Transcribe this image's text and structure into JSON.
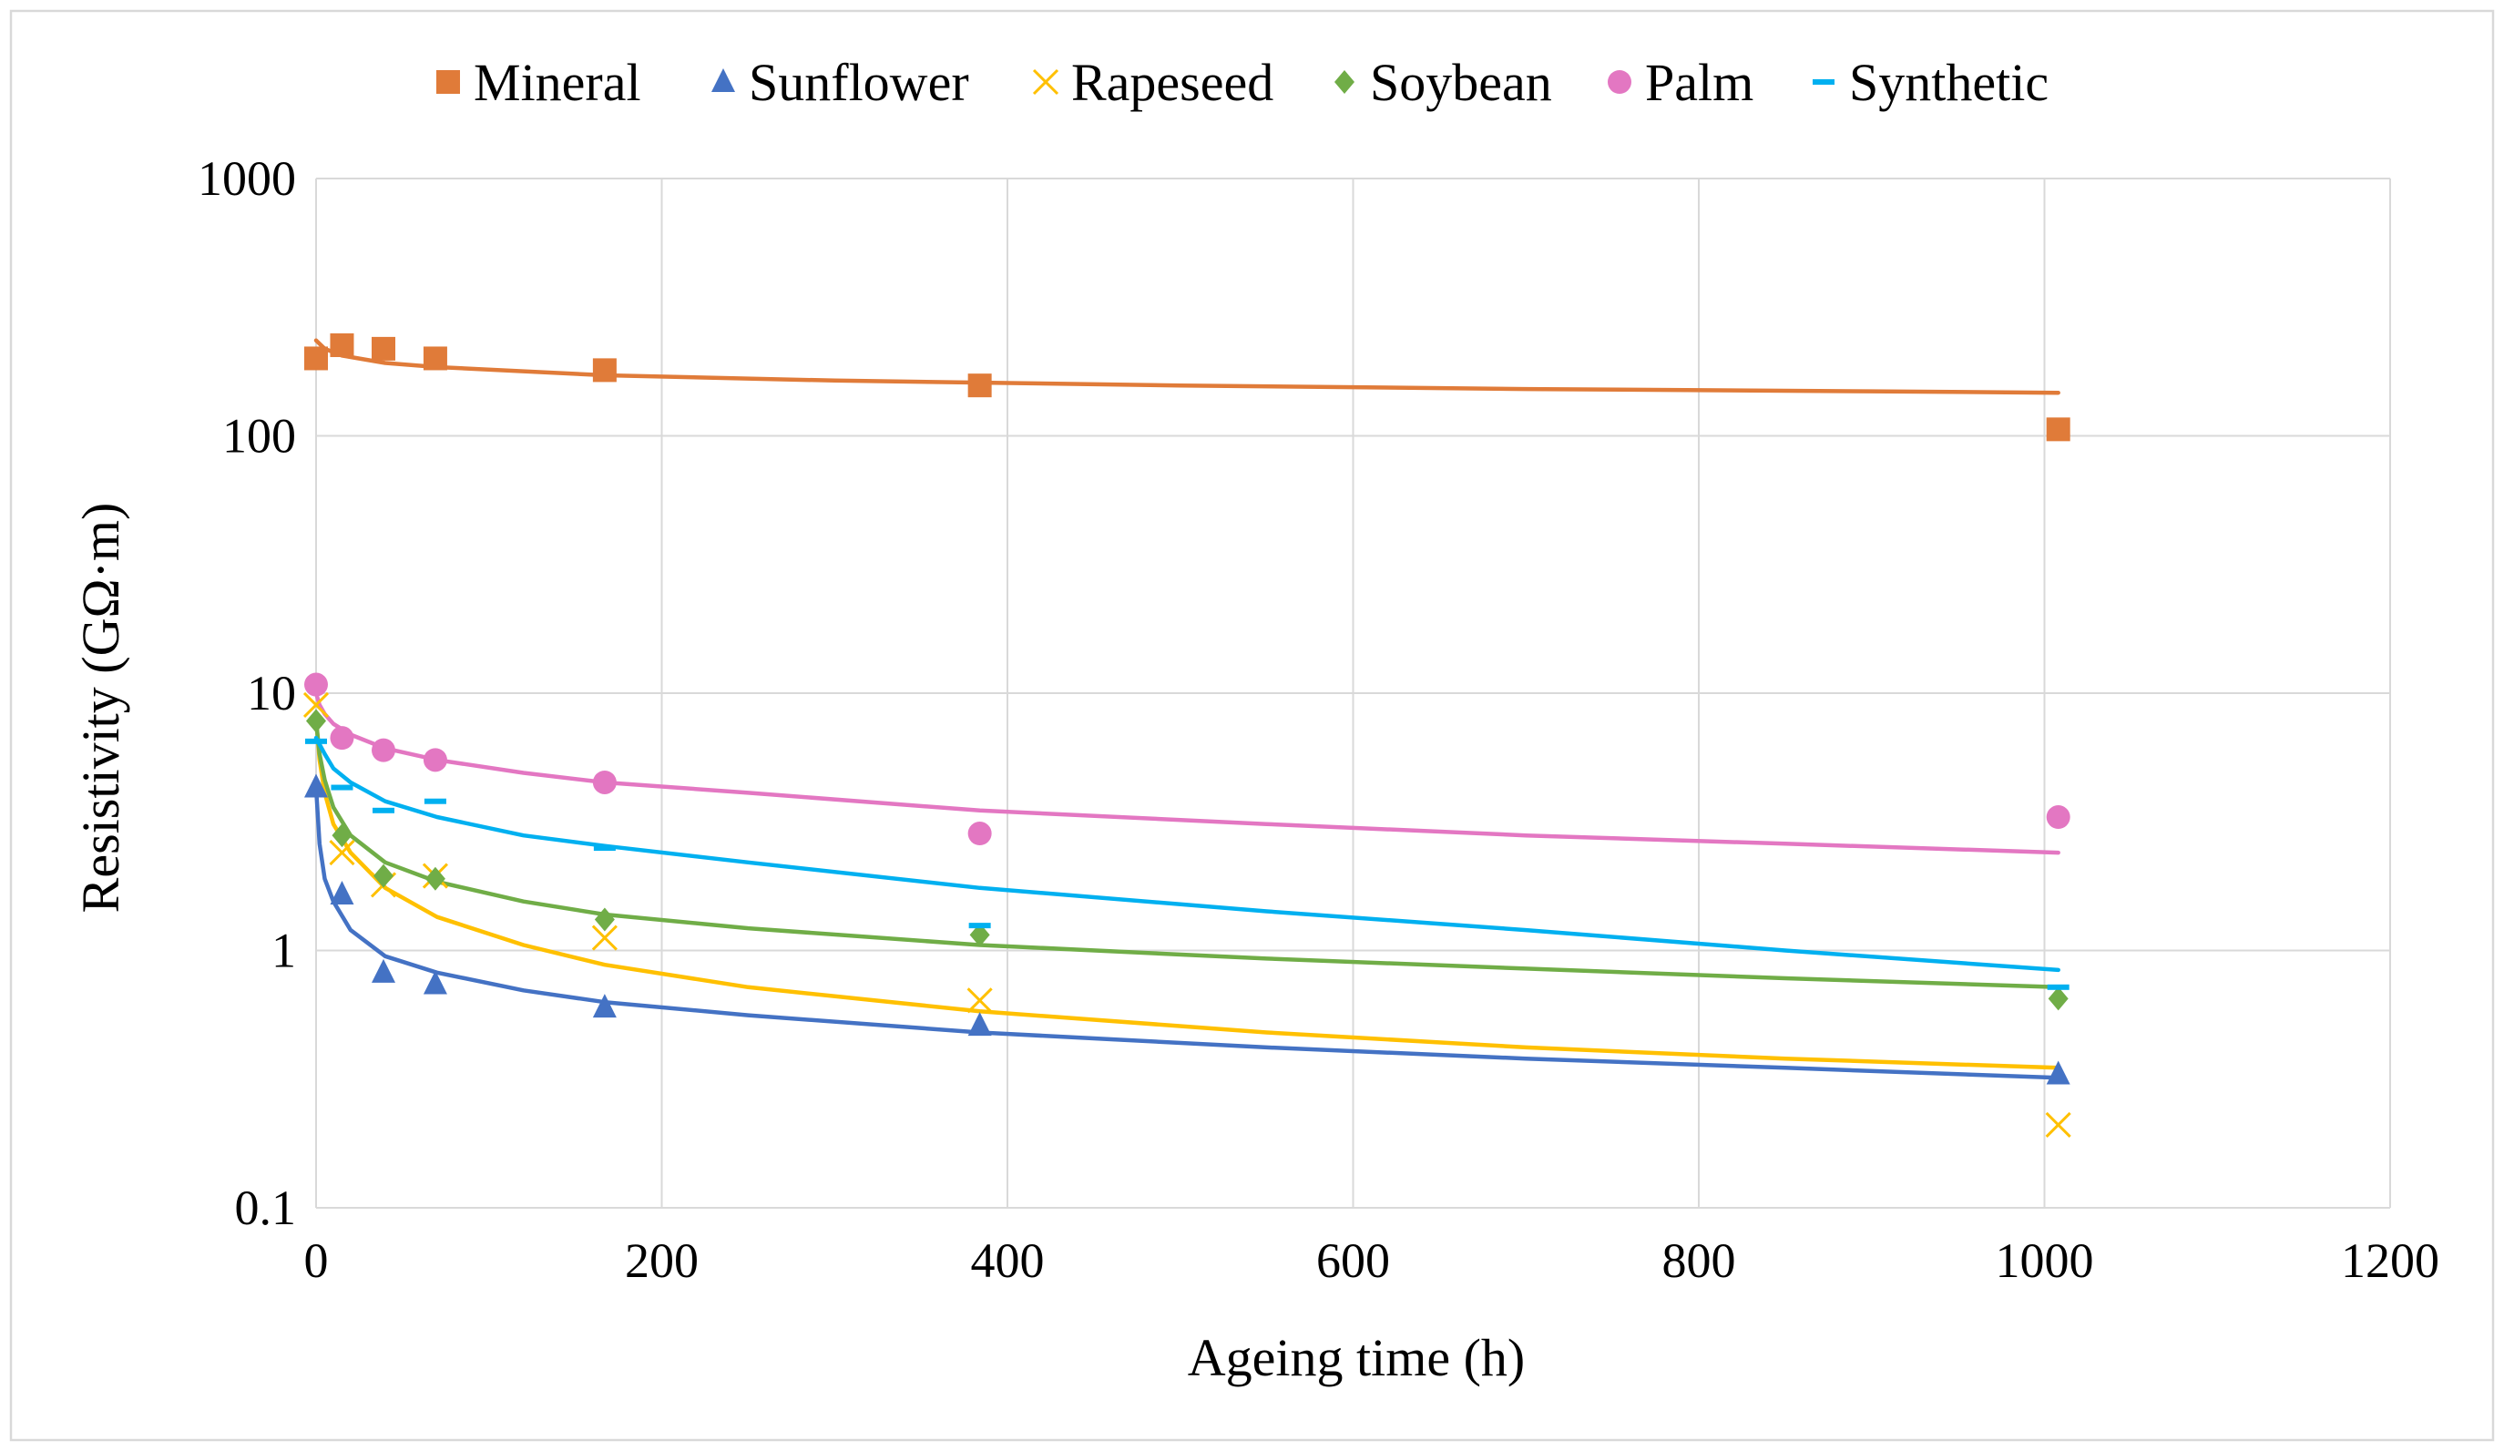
{
  "chart_data": {
    "type": "scatter",
    "title": "",
    "xlabel": "Ageing time (h)",
    "ylabel": "Resistivity (GΩ·m)",
    "xlim": [
      0,
      1200
    ],
    "ylim": [
      0.1,
      1000
    ],
    "yscale": "log",
    "grid": true,
    "legend_position": "top",
    "x_ticks": [
      0,
      200,
      400,
      600,
      800,
      1000,
      1200
    ],
    "x_tick_labels": [
      "0",
      "200",
      "400",
      "600",
      "800",
      "1000",
      "1200"
    ],
    "y_ticks": [
      0.1,
      1,
      10,
      100,
      1000
    ],
    "y_tick_labels": [
      "0.1",
      "1",
      "10",
      "100",
      "1000"
    ],
    "x": [
      0,
      15,
      39,
      69,
      167,
      384,
      1008
    ],
    "series": [
      {
        "name": "Mineral",
        "marker": "square",
        "color": "#e07b39",
        "values": [
          200,
          225,
          218,
          200,
          180,
          157,
          106
        ],
        "trend": [
          [
            0,
            235
          ],
          [
            5,
            218
          ],
          [
            15,
            205
          ],
          [
            40,
            192
          ],
          [
            70,
            185
          ],
          [
            167,
            172
          ],
          [
            300,
            164
          ],
          [
            500,
            157
          ],
          [
            700,
            152
          ],
          [
            900,
            149
          ],
          [
            1008,
            147
          ]
        ]
      },
      {
        "name": "Sunflower",
        "marker": "triangle",
        "color": "#4472c4",
        "values": [
          4.3,
          1.65,
          0.82,
          0.74,
          0.6,
          0.51,
          0.33
        ],
        "trend": [
          [
            0,
            4.3
          ],
          [
            2,
            2.6
          ],
          [
            5,
            1.9
          ],
          [
            10,
            1.55
          ],
          [
            20,
            1.2
          ],
          [
            40,
            0.95
          ],
          [
            70,
            0.82
          ],
          [
            120,
            0.7
          ],
          [
            167,
            0.63
          ],
          [
            250,
            0.56
          ],
          [
            384,
            0.48
          ],
          [
            550,
            0.42
          ],
          [
            700,
            0.38
          ],
          [
            850,
            0.35
          ],
          [
            1008,
            0.32
          ]
        ]
      },
      {
        "name": "Rapeseed",
        "marker": "x",
        "color": "#ffc000",
        "values": [
          9.0,
          2.4,
          1.8,
          1.95,
          1.12,
          0.64,
          0.21
        ],
        "trend": [
          [
            0,
            8.0
          ],
          [
            2,
            5.5
          ],
          [
            5,
            4.1
          ],
          [
            10,
            3.1
          ],
          [
            20,
            2.4
          ],
          [
            40,
            1.75
          ],
          [
            70,
            1.35
          ],
          [
            120,
            1.05
          ],
          [
            167,
            0.88
          ],
          [
            250,
            0.72
          ],
          [
            384,
            0.58
          ],
          [
            550,
            0.48
          ],
          [
            700,
            0.42
          ],
          [
            850,
            0.38
          ],
          [
            1008,
            0.35
          ]
        ]
      },
      {
        "name": "Soybean",
        "marker": "diamond",
        "color": "#70ad47",
        "values": [
          7.8,
          2.8,
          1.95,
          1.9,
          1.32,
          1.15,
          0.65
        ],
        "trend": [
          [
            0,
            7.8
          ],
          [
            2,
            5.8
          ],
          [
            5,
            4.6
          ],
          [
            10,
            3.6
          ],
          [
            20,
            2.8
          ],
          [
            40,
            2.2
          ],
          [
            70,
            1.85
          ],
          [
            120,
            1.55
          ],
          [
            167,
            1.38
          ],
          [
            250,
            1.22
          ],
          [
            384,
            1.05
          ],
          [
            550,
            0.93
          ],
          [
            700,
            0.85
          ],
          [
            850,
            0.78
          ],
          [
            1008,
            0.72
          ]
        ]
      },
      {
        "name": "Palm",
        "marker": "circle",
        "color": "#e377c2",
        "values": [
          10.8,
          6.7,
          6.0,
          5.5,
          4.5,
          2.85,
          3.3
        ],
        "trend": [
          [
            0,
            10.0
          ],
          [
            2,
            9.0
          ],
          [
            5,
            8.3
          ],
          [
            10,
            7.6
          ],
          [
            20,
            6.9
          ],
          [
            40,
            6.1
          ],
          [
            70,
            5.5
          ],
          [
            120,
            4.9
          ],
          [
            167,
            4.5
          ],
          [
            250,
            4.1
          ],
          [
            384,
            3.5
          ],
          [
            550,
            3.1
          ],
          [
            700,
            2.8
          ],
          [
            850,
            2.6
          ],
          [
            1008,
            2.4
          ]
        ]
      },
      {
        "name": "Synthetic",
        "marker": "dash",
        "color": "#00b0f0",
        "values": [
          6.5,
          4.3,
          3.5,
          3.8,
          2.5,
          1.25,
          0.72
        ],
        "trend": [
          [
            0,
            6.7
          ],
          [
            5,
            5.8
          ],
          [
            10,
            5.1
          ],
          [
            20,
            4.5
          ],
          [
            40,
            3.8
          ],
          [
            70,
            3.3
          ],
          [
            120,
            2.8
          ],
          [
            167,
            2.55
          ],
          [
            250,
            2.2
          ],
          [
            384,
            1.75
          ],
          [
            550,
            1.42
          ],
          [
            700,
            1.2
          ],
          [
            850,
            1.0
          ],
          [
            1008,
            0.84
          ]
        ]
      }
    ]
  }
}
